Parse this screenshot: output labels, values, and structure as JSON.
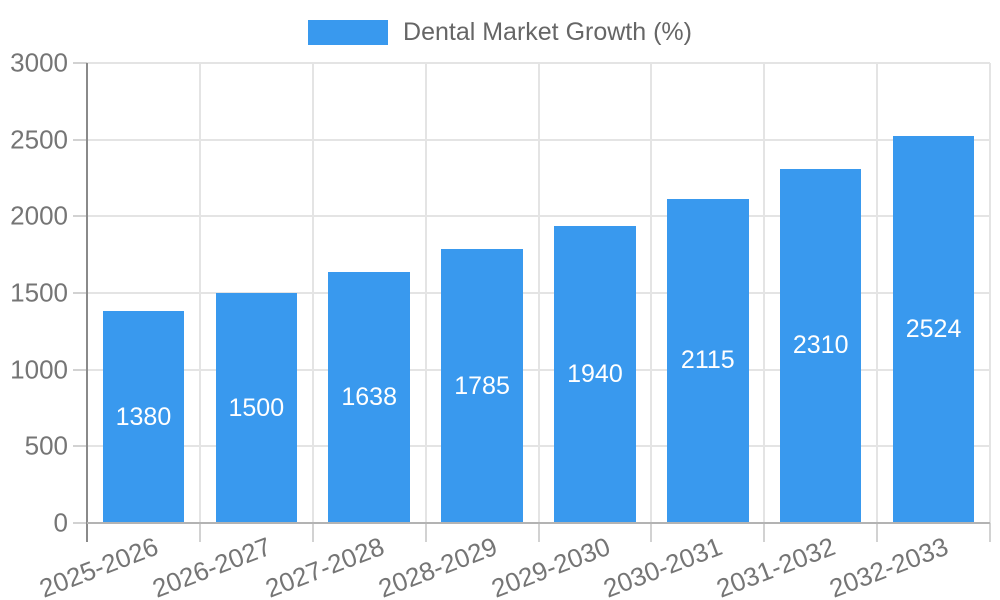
{
  "legend": {
    "label": "Dental Market Growth (%)"
  },
  "colors": {
    "bar": "#3999ee",
    "grid": "#e4e4e4",
    "axis_y": "#8a8a8a",
    "axis_x": "#b3b3b3",
    "tick": "#d2d2d2",
    "tick_label": "#757575",
    "legend_text": "#666666",
    "value_label": "#ffffff"
  },
  "chart_data": {
    "type": "bar",
    "title": "",
    "legend_entries": [
      "Dental Market Growth (%)"
    ],
    "legend_position": "top-center",
    "categories": [
      "2025-2026",
      "2026-2027",
      "2027-2028",
      "2028-2029",
      "2029-2030",
      "2030-2031",
      "2031-2032",
      "2032-2033"
    ],
    "values": [
      1380,
      1500,
      1638,
      1785,
      1940,
      2115,
      2310,
      2524
    ],
    "value_labels_inside_bars": true,
    "xlabel": "",
    "ylabel": "",
    "ylim": [
      0,
      3000
    ],
    "yticks": [
      0,
      500,
      1000,
      1500,
      2000,
      2500,
      3000
    ],
    "grid": true,
    "x_tick_rotation_deg": -21
  }
}
